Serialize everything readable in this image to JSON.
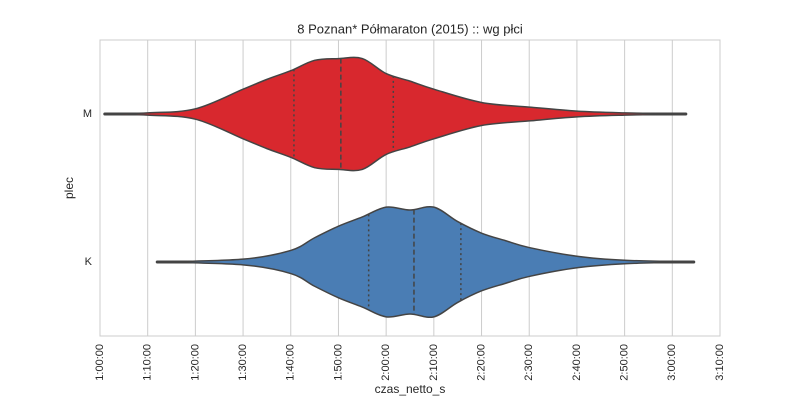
{
  "chart_data": {
    "type": "violin",
    "title": "8 Poznan* Półmaraton (2015) :: wg płci",
    "xlabel": "czas_netto_s",
    "ylabel": "plec",
    "grid": true,
    "xlim": [
      3600,
      11400
    ],
    "xticks": [
      {
        "value": 3600,
        "label": "1:00:00"
      },
      {
        "value": 4200,
        "label": "1:10:00"
      },
      {
        "value": 4800,
        "label": "1:20:00"
      },
      {
        "value": 5400,
        "label": "1:30:00"
      },
      {
        "value": 6000,
        "label": "1:40:00"
      },
      {
        "value": 6600,
        "label": "1:50:00"
      },
      {
        "value": 7200,
        "label": "2:00:00"
      },
      {
        "value": 7800,
        "label": "2:10:00"
      },
      {
        "value": 8400,
        "label": "2:20:00"
      },
      {
        "value": 9000,
        "label": "2:30:00"
      },
      {
        "value": 9600,
        "label": "2:40:00"
      },
      {
        "value": 10200,
        "label": "2:50:00"
      },
      {
        "value": 10800,
        "label": "3:00:00"
      },
      {
        "value": 11400,
        "label": "3:10:00"
      }
    ],
    "series": [
      {
        "name": "M",
        "color": "#d8282e",
        "range": [
          3660,
          10970
        ],
        "quartiles": [
          6040,
          6630,
          7290
        ],
        "density_x": [
          3660,
          4200,
          4800,
          5400,
          5700,
          6000,
          6300,
          6600,
          6900,
          7200,
          7500,
          7800,
          8400,
          9000,
          9600,
          10200,
          10970
        ],
        "density": [
          0,
          0.02,
          0.09,
          0.43,
          0.6,
          0.75,
          0.93,
          0.96,
          0.96,
          0.7,
          0.57,
          0.43,
          0.2,
          0.12,
          0.05,
          0.02,
          0
        ]
      },
      {
        "name": "K",
        "color": "#4a7db4",
        "range": [
          4320,
          11070
        ],
        "quartiles": [
          6980,
          7550,
          8140
        ],
        "density_x": [
          4320,
          5400,
          6000,
          6300,
          6600,
          6900,
          7200,
          7500,
          7800,
          8100,
          8400,
          8700,
          9000,
          9600,
          10200,
          11070
        ],
        "density": [
          0,
          0.05,
          0.2,
          0.42,
          0.62,
          0.78,
          0.95,
          0.9,
          0.95,
          0.7,
          0.5,
          0.37,
          0.25,
          0.1,
          0.03,
          0
        ]
      }
    ]
  }
}
